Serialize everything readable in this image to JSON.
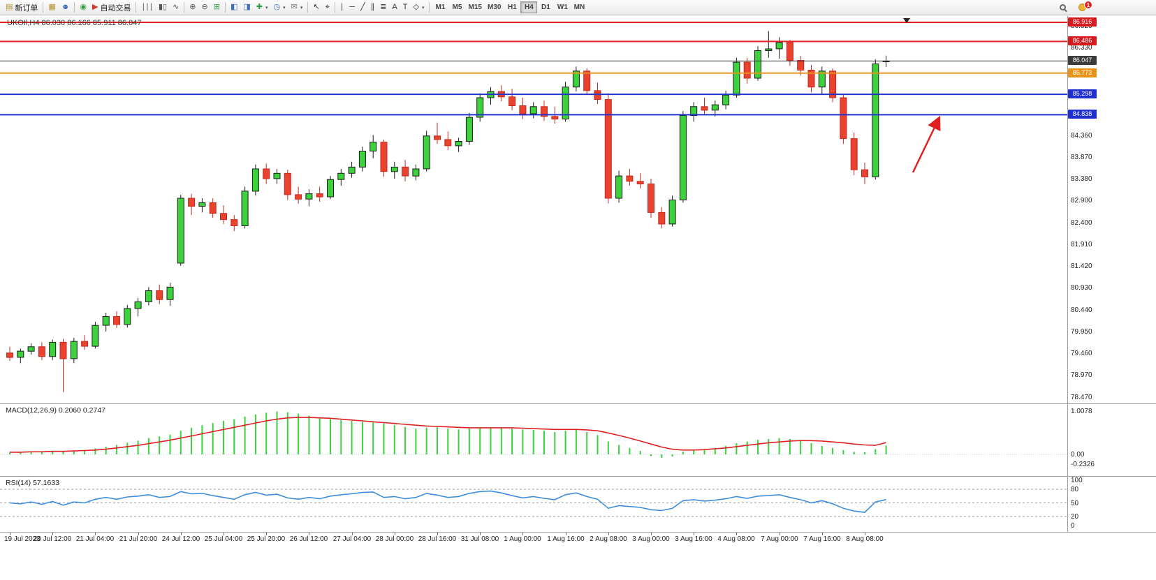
{
  "toolbar": {
    "notification_badge": "1",
    "items": [
      {
        "name": "new-order-button",
        "glyph": "▤",
        "color": "#b8912f",
        "label": "新订单"
      },
      {
        "sep": true
      },
      {
        "name": "market-watch-button",
        "glyph": "▦",
        "color": "#b8912f"
      },
      {
        "name": "profile-button",
        "glyph": "☻",
        "color": "#3b6fb5"
      },
      {
        "sep": true
      },
      {
        "name": "one-click-trading-button",
        "glyph": "◉",
        "color": "#2f9e44"
      },
      {
        "name": "autotrading-button",
        "glyph": "▶",
        "color": "#cf3a2b",
        "label": "自动交易"
      },
      {
        "sep": true
      },
      {
        "name": "bar-chart-view-button",
        "glyph": "∣∣∣",
        "color": "#555"
      },
      {
        "name": "candle-chart-view-button",
        "glyph": "▮▯",
        "color": "#555"
      },
      {
        "name": "line-chart-view-button",
        "glyph": "∿",
        "color": "#555"
      },
      {
        "sep": true
      },
      {
        "name": "zoom-in-button",
        "glyph": "⊕",
        "color": "#555"
      },
      {
        "name": "zoom-out-button",
        "glyph": "⊖",
        "color": "#555"
      },
      {
        "name": "tile-windows-button",
        "glyph": "⊞",
        "color": "#2f9e44"
      },
      {
        "sep": true
      },
      {
        "name": "arrange-windows-button",
        "glyph": "◧",
        "color": "#3b6fb5"
      },
      {
        "name": "cascade-windows-button",
        "glyph": "◨",
        "color": "#3b6fb5"
      },
      {
        "name": "add-indicator-button",
        "glyph": "✚",
        "color": "#2f9e44",
        "dropdown": true
      },
      {
        "name": "period-button",
        "glyph": "◷",
        "color": "#3b6fb5",
        "dropdown": true
      },
      {
        "name": "templates-button",
        "glyph": "✉",
        "color": "#777",
        "dropdown": true
      },
      {
        "sep": true
      },
      {
        "name": "cursor-button",
        "glyph": "↖",
        "color": "#333"
      },
      {
        "name": "crosshair-button",
        "glyph": "⌖",
        "color": "#333"
      },
      {
        "sep": true
      },
      {
        "name": "vertical-line-button",
        "glyph": "∣",
        "color": "#333"
      },
      {
        "name": "horizontal-line-button",
        "glyph": "─",
        "color": "#333"
      },
      {
        "name": "trendline-button",
        "glyph": "╱",
        "color": "#333"
      },
      {
        "name": "channel-button",
        "glyph": "∥",
        "color": "#333"
      },
      {
        "name": "fibonacci-button",
        "glyph": "≣",
        "color": "#333"
      },
      {
        "name": "text-button",
        "glyph": "A",
        "color": "#333"
      },
      {
        "name": "label-button",
        "glyph": "T",
        "color": "#333"
      },
      {
        "name": "shapes-button",
        "glyph": "◇",
        "color": "#333",
        "dropdown": true
      },
      {
        "sep": true
      }
    ],
    "timeframes": {
      "options": [
        "M1",
        "M5",
        "M15",
        "M30",
        "H1",
        "H4",
        "D1",
        "W1",
        "MN"
      ],
      "active": "H4"
    }
  },
  "chart": {
    "symbol_label": "UKOIl,H4 86.030 86.166 85.911 86.047",
    "price_axis_labels": [
      "86.820",
      "86.330",
      "84.360",
      "83.870",
      "83.380",
      "82.900",
      "82.400",
      "81.910",
      "81.420",
      "80.930",
      "80.440",
      "79.950",
      "79.460",
      "78.970",
      "78.470"
    ],
    "price_markers": [
      {
        "text": "86.916",
        "value": 86.916,
        "box_color": "#d71920",
        "line_color": "#e02020",
        "line_width": 2
      },
      {
        "text": "86.486",
        "value": 86.486,
        "box_color": "#d71920",
        "line_color": "#e02020",
        "line_width": 2
      },
      {
        "text": "86.047",
        "value": 86.047,
        "box_color": "#3c3c3c",
        "line_color": "#333333",
        "line_width": 1
      },
      {
        "text": "85.773",
        "value": 85.773,
        "box_color": "#e8941a",
        "line_color": "#e8941a",
        "line_width": 2
      },
      {
        "text": "85.298",
        "value": 85.298,
        "box_color": "#2030d0",
        "line_color": "#2233cc",
        "line_width": 2
      },
      {
        "text": "84.838",
        "value": 84.838,
        "box_color": "#2030d0",
        "line_color": "#2233cc",
        "line_width": 2
      }
    ],
    "time_labels": [
      "19 Jul 2023",
      "20 Jul 12:00",
      "21 Jul 04:00",
      "21 Jul 20:00",
      "24 Jul 12:00",
      "25 Jul 04:00",
      "25 Jul 20:00",
      "26 Jul 12:00",
      "27 Jul 04:00",
      "28 Jul 00:00",
      "28 Jul 16:00",
      "31 Jul 08:00",
      "1 Aug 00:00",
      "1 Aug 16:00",
      "2 Aug 08:00",
      "3 Aug 00:00",
      "3 Aug 16:00",
      "4 Aug 08:00",
      "7 Aug 00:00",
      "7 Aug 16:00",
      "8 Aug 08:00"
    ],
    "annotation_arrow": {
      "color": "#e02020"
    }
  },
  "colors": {
    "up": "#3bd23b",
    "up_border": "#1c1c1c",
    "down": "#e8432f",
    "down_border": "#c8281c",
    "macd_hist": "#3bd23b",
    "macd_signal": "#e02020",
    "rsi_line": "#3e8ddd"
  },
  "chart_data": {
    "type": "candlestick",
    "symbol": "UKOIL",
    "timeframe": "H4",
    "price_range": [
      78.47,
      86.916
    ],
    "ohlc": [
      [
        79.48,
        79.62,
        79.3,
        79.38
      ],
      [
        79.38,
        79.58,
        79.25,
        79.52
      ],
      [
        79.52,
        79.7,
        79.44,
        79.62
      ],
      [
        79.62,
        79.72,
        79.32,
        79.4
      ],
      [
        79.4,
        79.78,
        79.32,
        79.72
      ],
      [
        79.72,
        79.8,
        78.6,
        79.35
      ],
      [
        79.35,
        79.82,
        79.25,
        79.74
      ],
      [
        79.74,
        79.88,
        79.55,
        79.63
      ],
      [
        79.63,
        80.18,
        79.58,
        80.1
      ],
      [
        80.1,
        80.38,
        79.96,
        80.3
      ],
      [
        80.3,
        80.42,
        80.04,
        80.12
      ],
      [
        80.12,
        80.56,
        80.05,
        80.48
      ],
      [
        80.48,
        80.72,
        80.3,
        80.63
      ],
      [
        80.63,
        80.96,
        80.55,
        80.88
      ],
      [
        80.88,
        81.02,
        80.58,
        80.68
      ],
      [
        80.68,
        81.06,
        80.54,
        80.96
      ],
      [
        81.5,
        83.04,
        81.44,
        82.96
      ],
      [
        82.96,
        83.06,
        82.58,
        82.78
      ],
      [
        82.78,
        82.96,
        82.64,
        82.86
      ],
      [
        82.86,
        82.96,
        82.52,
        82.62
      ],
      [
        82.62,
        82.8,
        82.38,
        82.48
      ],
      [
        82.48,
        82.58,
        82.22,
        82.34
      ],
      [
        82.34,
        83.22,
        82.28,
        83.12
      ],
      [
        83.12,
        83.72,
        83.02,
        83.62
      ],
      [
        83.62,
        83.74,
        83.28,
        83.4
      ],
      [
        83.4,
        83.62,
        83.28,
        83.52
      ],
      [
        83.52,
        83.6,
        82.92,
        83.04
      ],
      [
        83.04,
        83.22,
        82.84,
        82.94
      ],
      [
        82.94,
        83.16,
        82.78,
        83.06
      ],
      [
        83.06,
        83.22,
        82.88,
        82.99
      ],
      [
        82.99,
        83.46,
        82.94,
        83.38
      ],
      [
        83.38,
        83.62,
        83.24,
        83.52
      ],
      [
        83.52,
        83.78,
        83.42,
        83.66
      ],
      [
        83.66,
        84.12,
        83.56,
        84.02
      ],
      [
        84.02,
        84.38,
        83.86,
        84.22
      ],
      [
        84.22,
        84.28,
        83.44,
        83.56
      ],
      [
        83.56,
        83.78,
        83.4,
        83.66
      ],
      [
        83.66,
        83.82,
        83.34,
        83.46
      ],
      [
        83.46,
        83.72,
        83.36,
        83.62
      ],
      [
        83.62,
        84.48,
        83.56,
        84.36
      ],
      [
        84.36,
        84.66,
        84.18,
        84.28
      ],
      [
        84.28,
        84.46,
        84.04,
        84.14
      ],
      [
        84.14,
        84.32,
        84.0,
        84.24
      ],
      [
        84.24,
        84.88,
        84.16,
        84.78
      ],
      [
        84.78,
        85.32,
        84.68,
        85.22
      ],
      [
        85.22,
        85.46,
        85.06,
        85.36
      ],
      [
        85.36,
        85.5,
        85.14,
        85.24
      ],
      [
        85.24,
        85.42,
        84.94,
        85.04
      ],
      [
        85.04,
        85.22,
        84.74,
        84.86
      ],
      [
        84.86,
        85.12,
        84.76,
        85.02
      ],
      [
        85.02,
        85.16,
        84.7,
        84.8
      ],
      [
        84.8,
        85.02,
        84.64,
        84.74
      ],
      [
        84.74,
        85.58,
        84.68,
        85.46
      ],
      [
        85.46,
        85.92,
        85.36,
        85.82
      ],
      [
        85.82,
        85.88,
        85.28,
        85.38
      ],
      [
        85.38,
        85.56,
        85.08,
        85.18
      ],
      [
        85.18,
        85.32,
        82.84,
        82.96
      ],
      [
        82.96,
        83.58,
        82.86,
        83.46
      ],
      [
        83.46,
        83.62,
        83.24,
        83.34
      ],
      [
        83.34,
        83.52,
        83.18,
        83.28
      ],
      [
        83.28,
        83.4,
        82.52,
        82.64
      ],
      [
        82.64,
        82.76,
        82.28,
        82.38
      ],
      [
        82.38,
        83.02,
        82.32,
        82.92
      ],
      [
        82.92,
        84.92,
        82.86,
        84.82
      ],
      [
        84.82,
        85.12,
        84.68,
        85.02
      ],
      [
        85.02,
        85.22,
        84.84,
        84.94
      ],
      [
        84.94,
        85.16,
        84.8,
        85.06
      ],
      [
        85.06,
        85.38,
        84.96,
        85.28
      ],
      [
        85.28,
        86.12,
        85.22,
        86.02
      ],
      [
        86.02,
        86.12,
        85.54,
        85.66
      ],
      [
        85.66,
        86.38,
        85.6,
        86.28
      ],
      [
        86.28,
        86.72,
        86.12,
        86.32
      ],
      [
        86.32,
        86.58,
        86.1,
        86.46
      ],
      [
        86.46,
        86.52,
        85.94,
        86.06
      ],
      [
        86.06,
        86.16,
        85.72,
        85.84
      ],
      [
        85.84,
        85.96,
        85.34,
        85.46
      ],
      [
        85.46,
        85.92,
        85.3,
        85.82
      ],
      [
        85.82,
        85.88,
        85.12,
        85.22
      ],
      [
        85.22,
        85.3,
        84.18,
        84.3
      ],
      [
        84.3,
        84.44,
        83.48,
        83.6
      ],
      [
        83.6,
        83.76,
        83.28,
        83.44
      ],
      [
        83.44,
        86.08,
        83.38,
        85.98
      ],
      [
        86.03,
        86.166,
        85.911,
        86.047
      ]
    ],
    "macd": {
      "label": "MACD(12,26,9) 0.2060 0.2747",
      "axis": [
        "1.0078",
        "0.00",
        "-0.2326"
      ],
      "axis_values": [
        1.0078,
        0,
        -0.2326
      ],
      "range": [
        -0.2326,
        1.0078
      ],
      "histogram": [
        0.04,
        0.05,
        0.06,
        0.05,
        0.07,
        0.06,
        0.08,
        0.1,
        0.14,
        0.18,
        0.22,
        0.27,
        0.32,
        0.38,
        0.42,
        0.46,
        0.55,
        0.62,
        0.68,
        0.73,
        0.78,
        0.82,
        0.88,
        0.93,
        0.97,
        1.0,
        0.98,
        0.95,
        0.9,
        0.86,
        0.82,
        0.8,
        0.78,
        0.76,
        0.75,
        0.72,
        0.68,
        0.64,
        0.6,
        0.62,
        0.63,
        0.6,
        0.58,
        0.6,
        0.62,
        0.63,
        0.62,
        0.6,
        0.58,
        0.57,
        0.55,
        0.52,
        0.55,
        0.58,
        0.52,
        0.45,
        0.3,
        0.22,
        0.15,
        0.08,
        -0.04,
        -0.08,
        -0.05,
        0.06,
        0.1,
        0.12,
        0.15,
        0.2,
        0.26,
        0.3,
        0.34,
        0.36,
        0.38,
        0.36,
        0.32,
        0.26,
        0.2,
        0.15,
        0.1,
        0.06,
        0.05,
        0.12,
        0.206
      ],
      "signal": [
        0.05,
        0.05,
        0.06,
        0.06,
        0.07,
        0.07,
        0.08,
        0.09,
        0.1,
        0.12,
        0.15,
        0.18,
        0.21,
        0.25,
        0.29,
        0.33,
        0.38,
        0.43,
        0.48,
        0.53,
        0.58,
        0.63,
        0.68,
        0.73,
        0.78,
        0.82,
        0.85,
        0.86,
        0.86,
        0.85,
        0.84,
        0.82,
        0.8,
        0.78,
        0.76,
        0.74,
        0.72,
        0.7,
        0.68,
        0.66,
        0.65,
        0.64,
        0.63,
        0.62,
        0.62,
        0.62,
        0.62,
        0.62,
        0.61,
        0.6,
        0.59,
        0.58,
        0.58,
        0.58,
        0.57,
        0.55,
        0.5,
        0.44,
        0.38,
        0.31,
        0.24,
        0.17,
        0.12,
        0.1,
        0.1,
        0.11,
        0.13,
        0.15,
        0.18,
        0.21,
        0.24,
        0.27,
        0.29,
        0.31,
        0.32,
        0.32,
        0.31,
        0.29,
        0.27,
        0.24,
        0.22,
        0.21,
        0.2747
      ]
    },
    "rsi": {
      "label": "RSI(14) 57.1633",
      "axis": [
        "100",
        "80",
        "50",
        "20",
        "0"
      ],
      "axis_values": [
        100,
        80,
        50,
        20,
        0
      ],
      "levels": [
        80,
        50,
        20
      ],
      "range": [
        0,
        100
      ],
      "values": [
        50,
        48,
        52,
        47,
        53,
        45,
        52,
        50,
        58,
        62,
        58,
        63,
        65,
        68,
        62,
        64,
        75,
        70,
        71,
        66,
        62,
        58,
        68,
        73,
        67,
        69,
        61,
        58,
        62,
        59,
        65,
        68,
        70,
        73,
        74,
        62,
        64,
        59,
        62,
        71,
        67,
        62,
        64,
        71,
        75,
        76,
        72,
        66,
        61,
        64,
        60,
        57,
        68,
        72,
        64,
        58,
        38,
        44,
        42,
        40,
        35,
        33,
        38,
        55,
        57,
        54,
        56,
        59,
        64,
        60,
        65,
        66,
        68,
        62,
        57,
        50,
        55,
        48,
        38,
        32,
        29,
        52,
        57.16
      ]
    }
  }
}
